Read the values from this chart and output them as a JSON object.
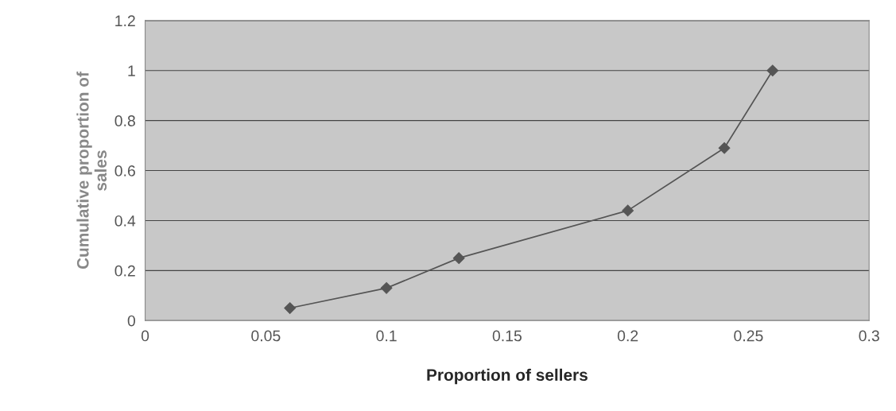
{
  "chart_data": {
    "type": "line",
    "xlabel": "Proportion of sellers",
    "ylabel": "Cumulative proportion of\nsales",
    "x": [
      0.06,
      0.1,
      0.13,
      0.2,
      0.24,
      0.26
    ],
    "series": [
      {
        "color": "#555555",
        "values": [
          0.05,
          0.13,
          0.25,
          0.44,
          0.69,
          1.0
        ]
      }
    ],
    "xlim": [
      0,
      0.3
    ],
    "xticks": [
      0,
      0.05,
      0.1,
      0.15,
      0.2,
      0.25,
      0.3
    ],
    "ylim": [
      0,
      1.2
    ],
    "yticks": [
      0,
      0.2,
      0.4,
      0.6,
      0.8,
      1,
      1.2
    ],
    "grid": "y",
    "marker": "diamond",
    "line_style": "solid",
    "legend": false
  }
}
